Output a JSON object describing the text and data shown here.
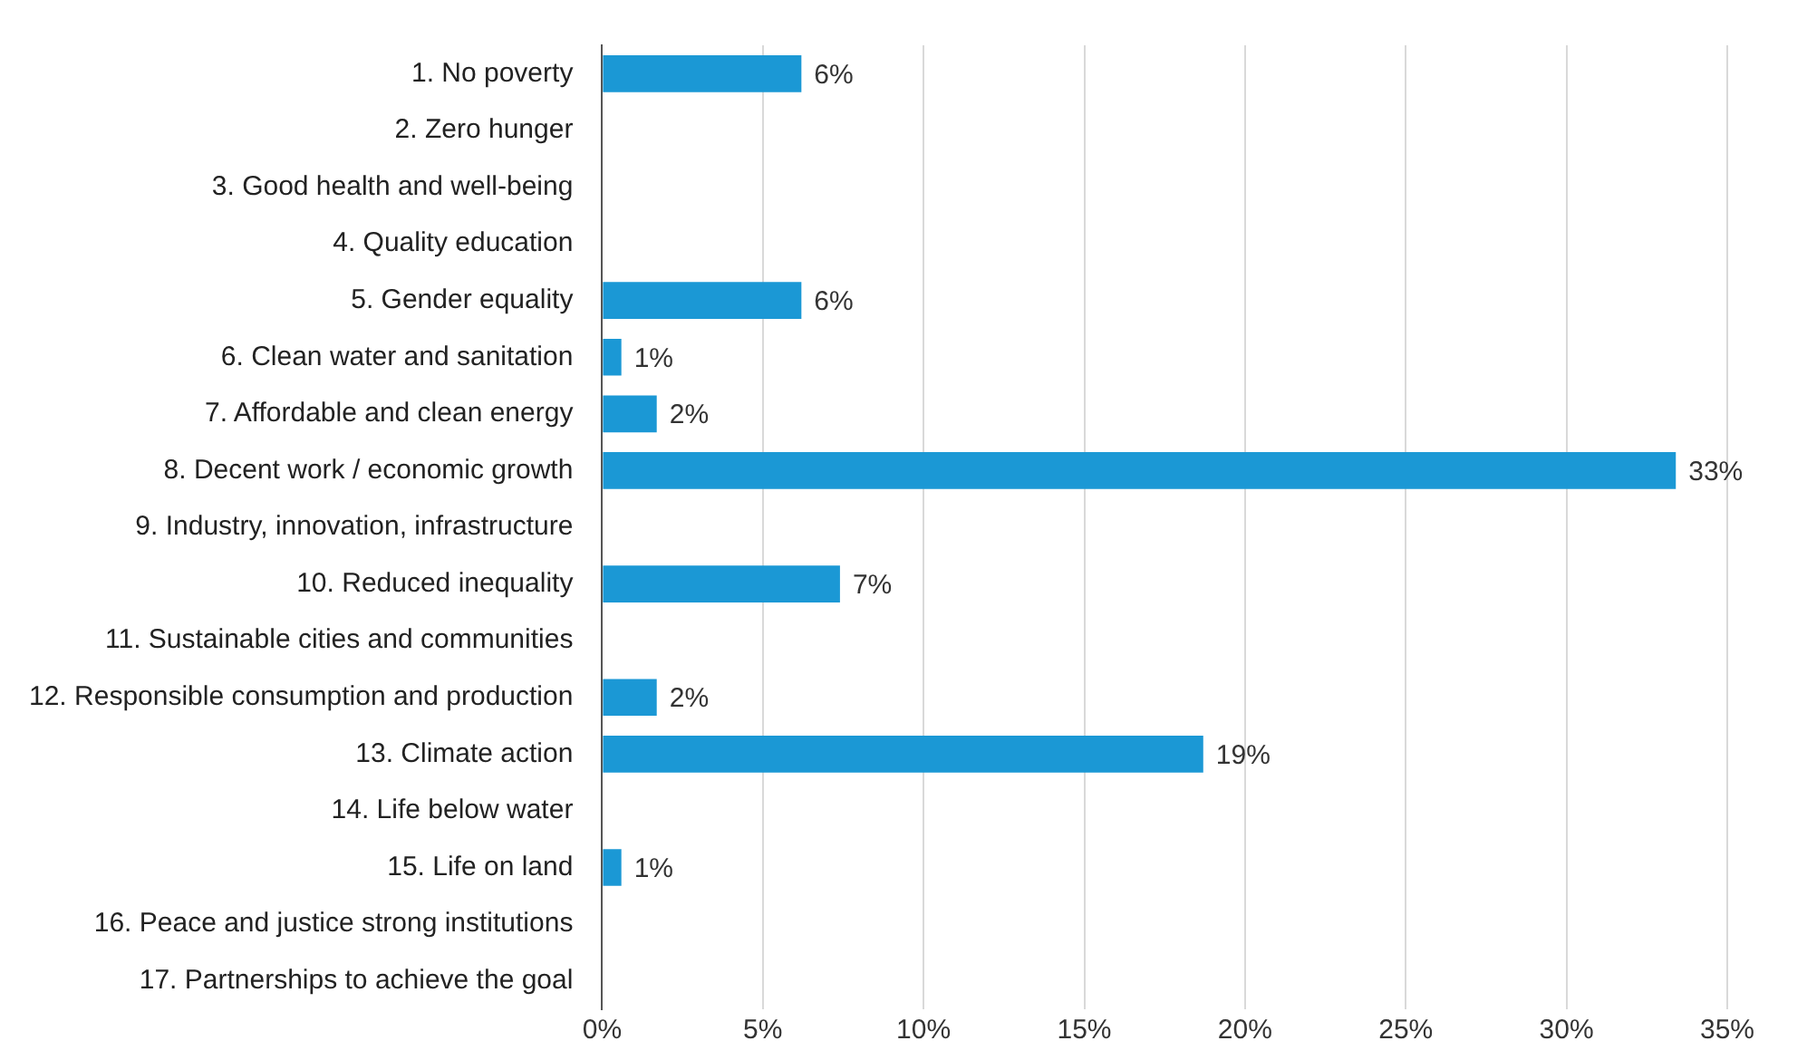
{
  "chart_data": {
    "type": "bar",
    "orientation": "horizontal",
    "categories": [
      "1. No poverty",
      "2. Zero hunger",
      "3. Good health and well-being",
      "4. Quality education",
      "5. Gender equality",
      "6. Clean water and sanitation",
      "7. Affordable and clean energy",
      "8. Decent work / economic growth",
      "9. Industry, innovation, infrastructure",
      "10. Reduced inequality",
      "11. Sustainable cities and communities",
      "12. Responsible consumption and production",
      "13. Climate action",
      "14. Life below water",
      "15. Life on land",
      "16. Peace and justice strong institutions",
      "17. Partnerships to achieve the goal"
    ],
    "values": [
      6.2,
      0,
      0,
      0,
      6.2,
      0.6,
      1.7,
      33.4,
      0,
      7.4,
      0,
      1.7,
      18.7,
      0,
      0.6,
      0,
      0
    ],
    "value_labels": [
      "6%",
      null,
      null,
      null,
      "6%",
      "1%",
      "2%",
      "33%",
      null,
      "7%",
      null,
      "2%",
      "19%",
      null,
      "1%",
      null,
      null
    ],
    "color": "#1b98d5",
    "xlim": [
      0,
      35
    ],
    "xticks": [
      {
        "value": 0,
        "label": "0%"
      },
      {
        "value": 5,
        "label": "5%"
      },
      {
        "value": 10,
        "label": "10%"
      },
      {
        "value": 15,
        "label": "15%"
      },
      {
        "value": 20,
        "label": "20%"
      },
      {
        "value": 25,
        "label": "25%"
      },
      {
        "value": 30,
        "label": "30%"
      },
      {
        "value": 35,
        "label": "35%"
      }
    ],
    "grid": "x"
  }
}
